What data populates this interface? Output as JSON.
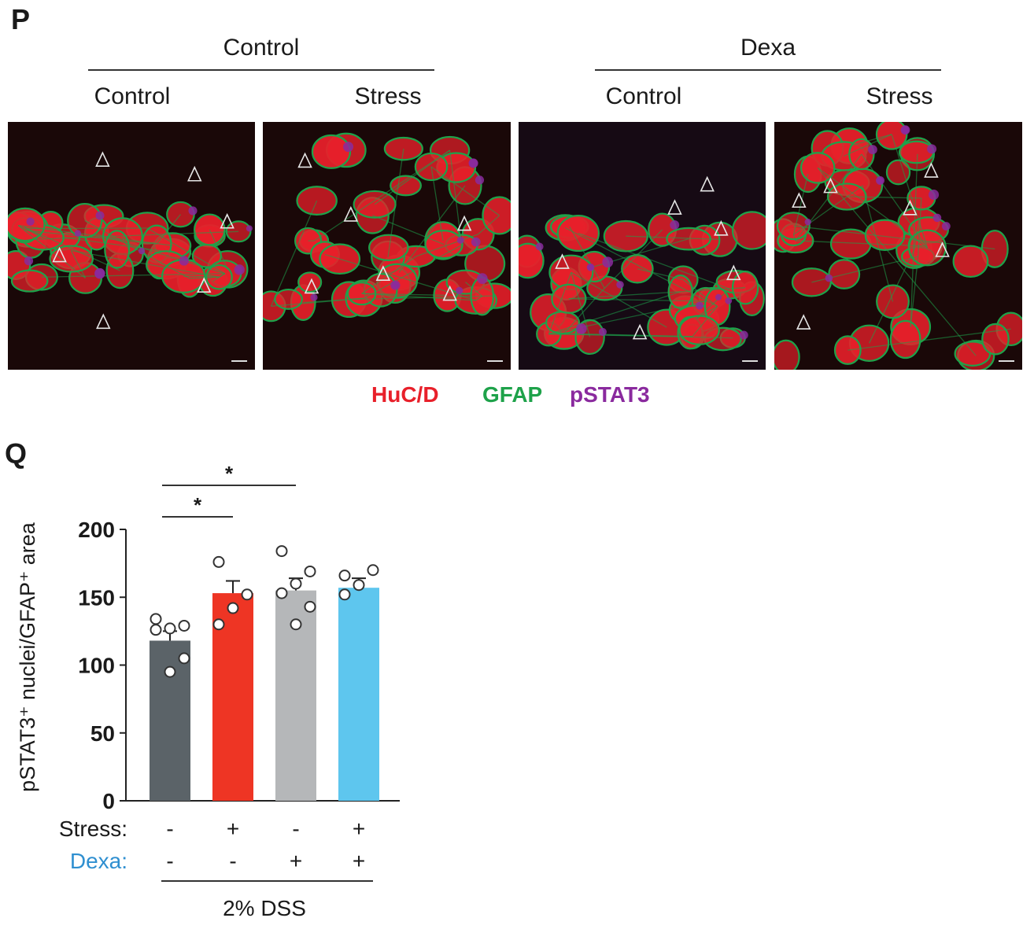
{
  "panel_p": {
    "letter": "P",
    "group_headers": [
      "Control",
      "Dexa"
    ],
    "column_headers": [
      "Control",
      "Stress",
      "Control",
      "Stress"
    ],
    "legend": [
      {
        "label": "HuC/D",
        "color": "#e8202a"
      },
      {
        "label": "GFAP",
        "color": "#1ea24a"
      },
      {
        "label": "pSTAT3",
        "color": "#8a2a9e"
      }
    ]
  },
  "panel_q": {
    "letter": "Q"
  },
  "chart_data": {
    "type": "bar",
    "ylabel": "pSTAT3⁺ nuclei/GFAP⁺ area",
    "ylim": [
      0,
      200
    ],
    "yticks": [
      0,
      50,
      100,
      150,
      200
    ],
    "categories": [
      "Control",
      "Stress",
      "Dexa",
      "Stress + Dexa"
    ],
    "values": [
      118,
      153,
      155,
      157
    ],
    "errors": [
      7,
      9,
      9,
      7
    ],
    "colors": [
      "#5b6368",
      "#ee3524",
      "#b5b7b9",
      "#5ec6ee"
    ],
    "points": [
      [
        134,
        129,
        127,
        126,
        105,
        95
      ],
      [
        176,
        152,
        142,
        130
      ],
      [
        184,
        169,
        160,
        153,
        143,
        130
      ],
      [
        166,
        170,
        159,
        152
      ]
    ],
    "condition_rows": [
      {
        "label": "Stress:",
        "values": [
          "-",
          "+",
          "-",
          "+"
        ],
        "color": "#1a1a1a"
      },
      {
        "label": "Dexa:",
        "values": [
          "-",
          "-",
          "+",
          "+"
        ],
        "color": "#2f8fd0"
      }
    ],
    "group_label": "2% DSS",
    "significance": [
      {
        "from": 0,
        "to": 1,
        "label": "*"
      },
      {
        "from": 0,
        "to": 2,
        "label": "*"
      }
    ]
  }
}
